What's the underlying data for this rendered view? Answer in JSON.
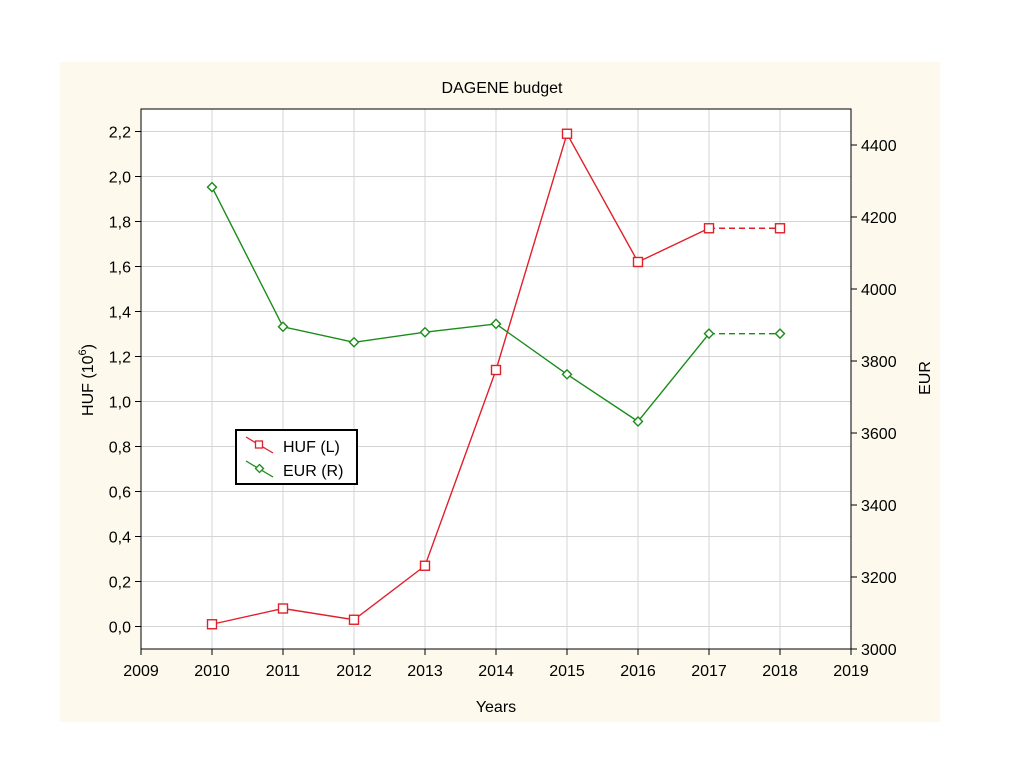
{
  "chart_data": {
    "type": "line",
    "title": "DAGENE budget",
    "xlabel": "Years",
    "ylabel_left": {
      "base": "HUF (10",
      "exp": "6",
      "close": ")"
    },
    "ylabel_right": "EUR",
    "xlim": [
      2009,
      2019
    ],
    "ylim_left": [
      -0.1,
      2.3
    ],
    "ylim_right": [
      3000,
      4500
    ],
    "x_ticks": [
      "2009",
      "2010",
      "2011",
      "2012",
      "2013",
      "2014",
      "2015",
      "2016",
      "2017",
      "2018",
      "2019"
    ],
    "y_left_ticks": [
      "0,0",
      "0,2",
      "0,4",
      "0,6",
      "0,8",
      "1,0",
      "1,2",
      "1,4",
      "1,6",
      "1,8",
      "2,0",
      "2,2"
    ],
    "y_right_ticks": [
      "3000",
      "3200",
      "3400",
      "3600",
      "3800",
      "4000",
      "4200",
      "4400"
    ],
    "grid": true,
    "legend_position": "left-middle",
    "series": [
      {
        "name": "HUF (L)",
        "axis": "left",
        "color": "#e0202a",
        "marker": "square",
        "x": [
          2010,
          2011,
          2012,
          2013,
          2014,
          2015,
          2016,
          2017,
          2018
        ],
        "values": [
          0.01,
          0.08,
          0.03,
          0.27,
          1.14,
          2.19,
          1.62,
          1.77,
          1.77
        ],
        "dashed_from_index": 7
      },
      {
        "name": "EUR (R)",
        "axis": "right",
        "color": "#1a8c1a",
        "marker": "diamond",
        "x": [
          2010,
          2011,
          2012,
          2013,
          2014,
          2015,
          2016,
          2017,
          2018
        ],
        "values": [
          4283,
          3895,
          3852,
          3880,
          3903,
          3763,
          3632,
          3876,
          3876
        ],
        "dashed_from_index": 7
      }
    ],
    "colors": {
      "background_panel": "#fdf9ec",
      "plot_bg": "#ffffff",
      "grid": "#d4d4d4"
    }
  }
}
